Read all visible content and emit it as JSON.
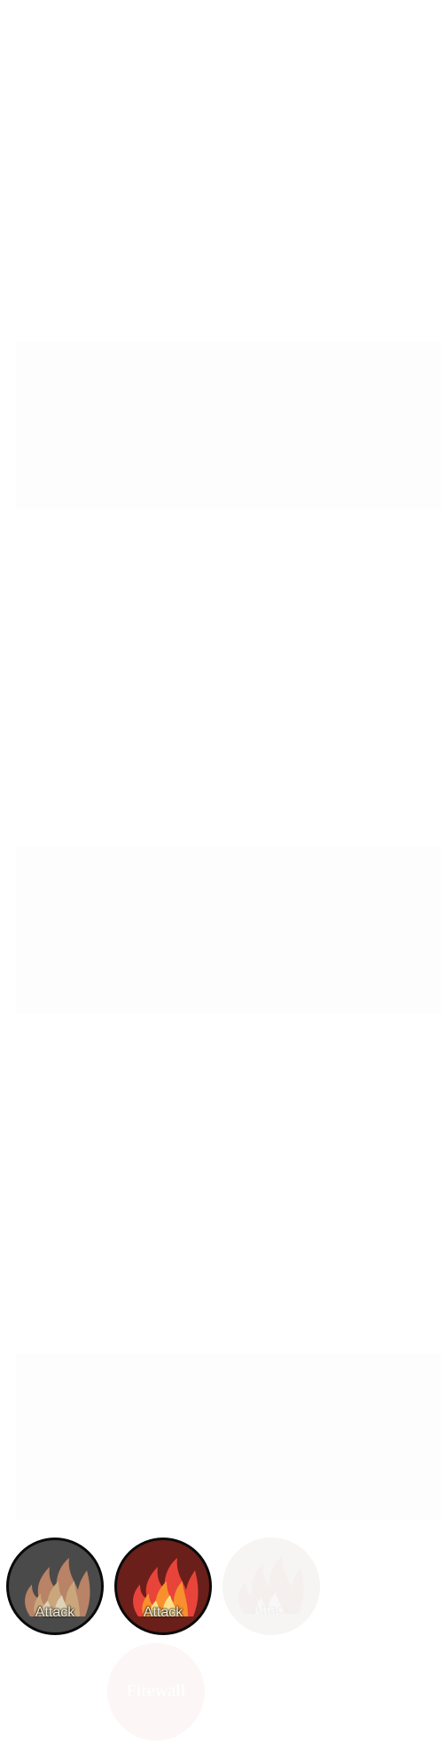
{
  "abilities": [
    {
      "id": "attack-disabled",
      "label": "Attack",
      "state": "disabled",
      "icon": "fire-icon"
    },
    {
      "id": "attack-active",
      "label": "Attack",
      "state": "active",
      "icon": "fire-icon"
    },
    {
      "id": "attack-faded",
      "label": "Attack",
      "state": "faded",
      "icon": "fire-icon"
    },
    {
      "id": "firewall-faded",
      "label": "Firewall",
      "state": "faded",
      "icon": ""
    }
  ],
  "colors": {
    "disabled_bg": "#4a4a4a",
    "active_bg": "#6a1f1a",
    "faded_bg": "#f6f5f4",
    "firewall_bg": "#fdf6f6"
  }
}
